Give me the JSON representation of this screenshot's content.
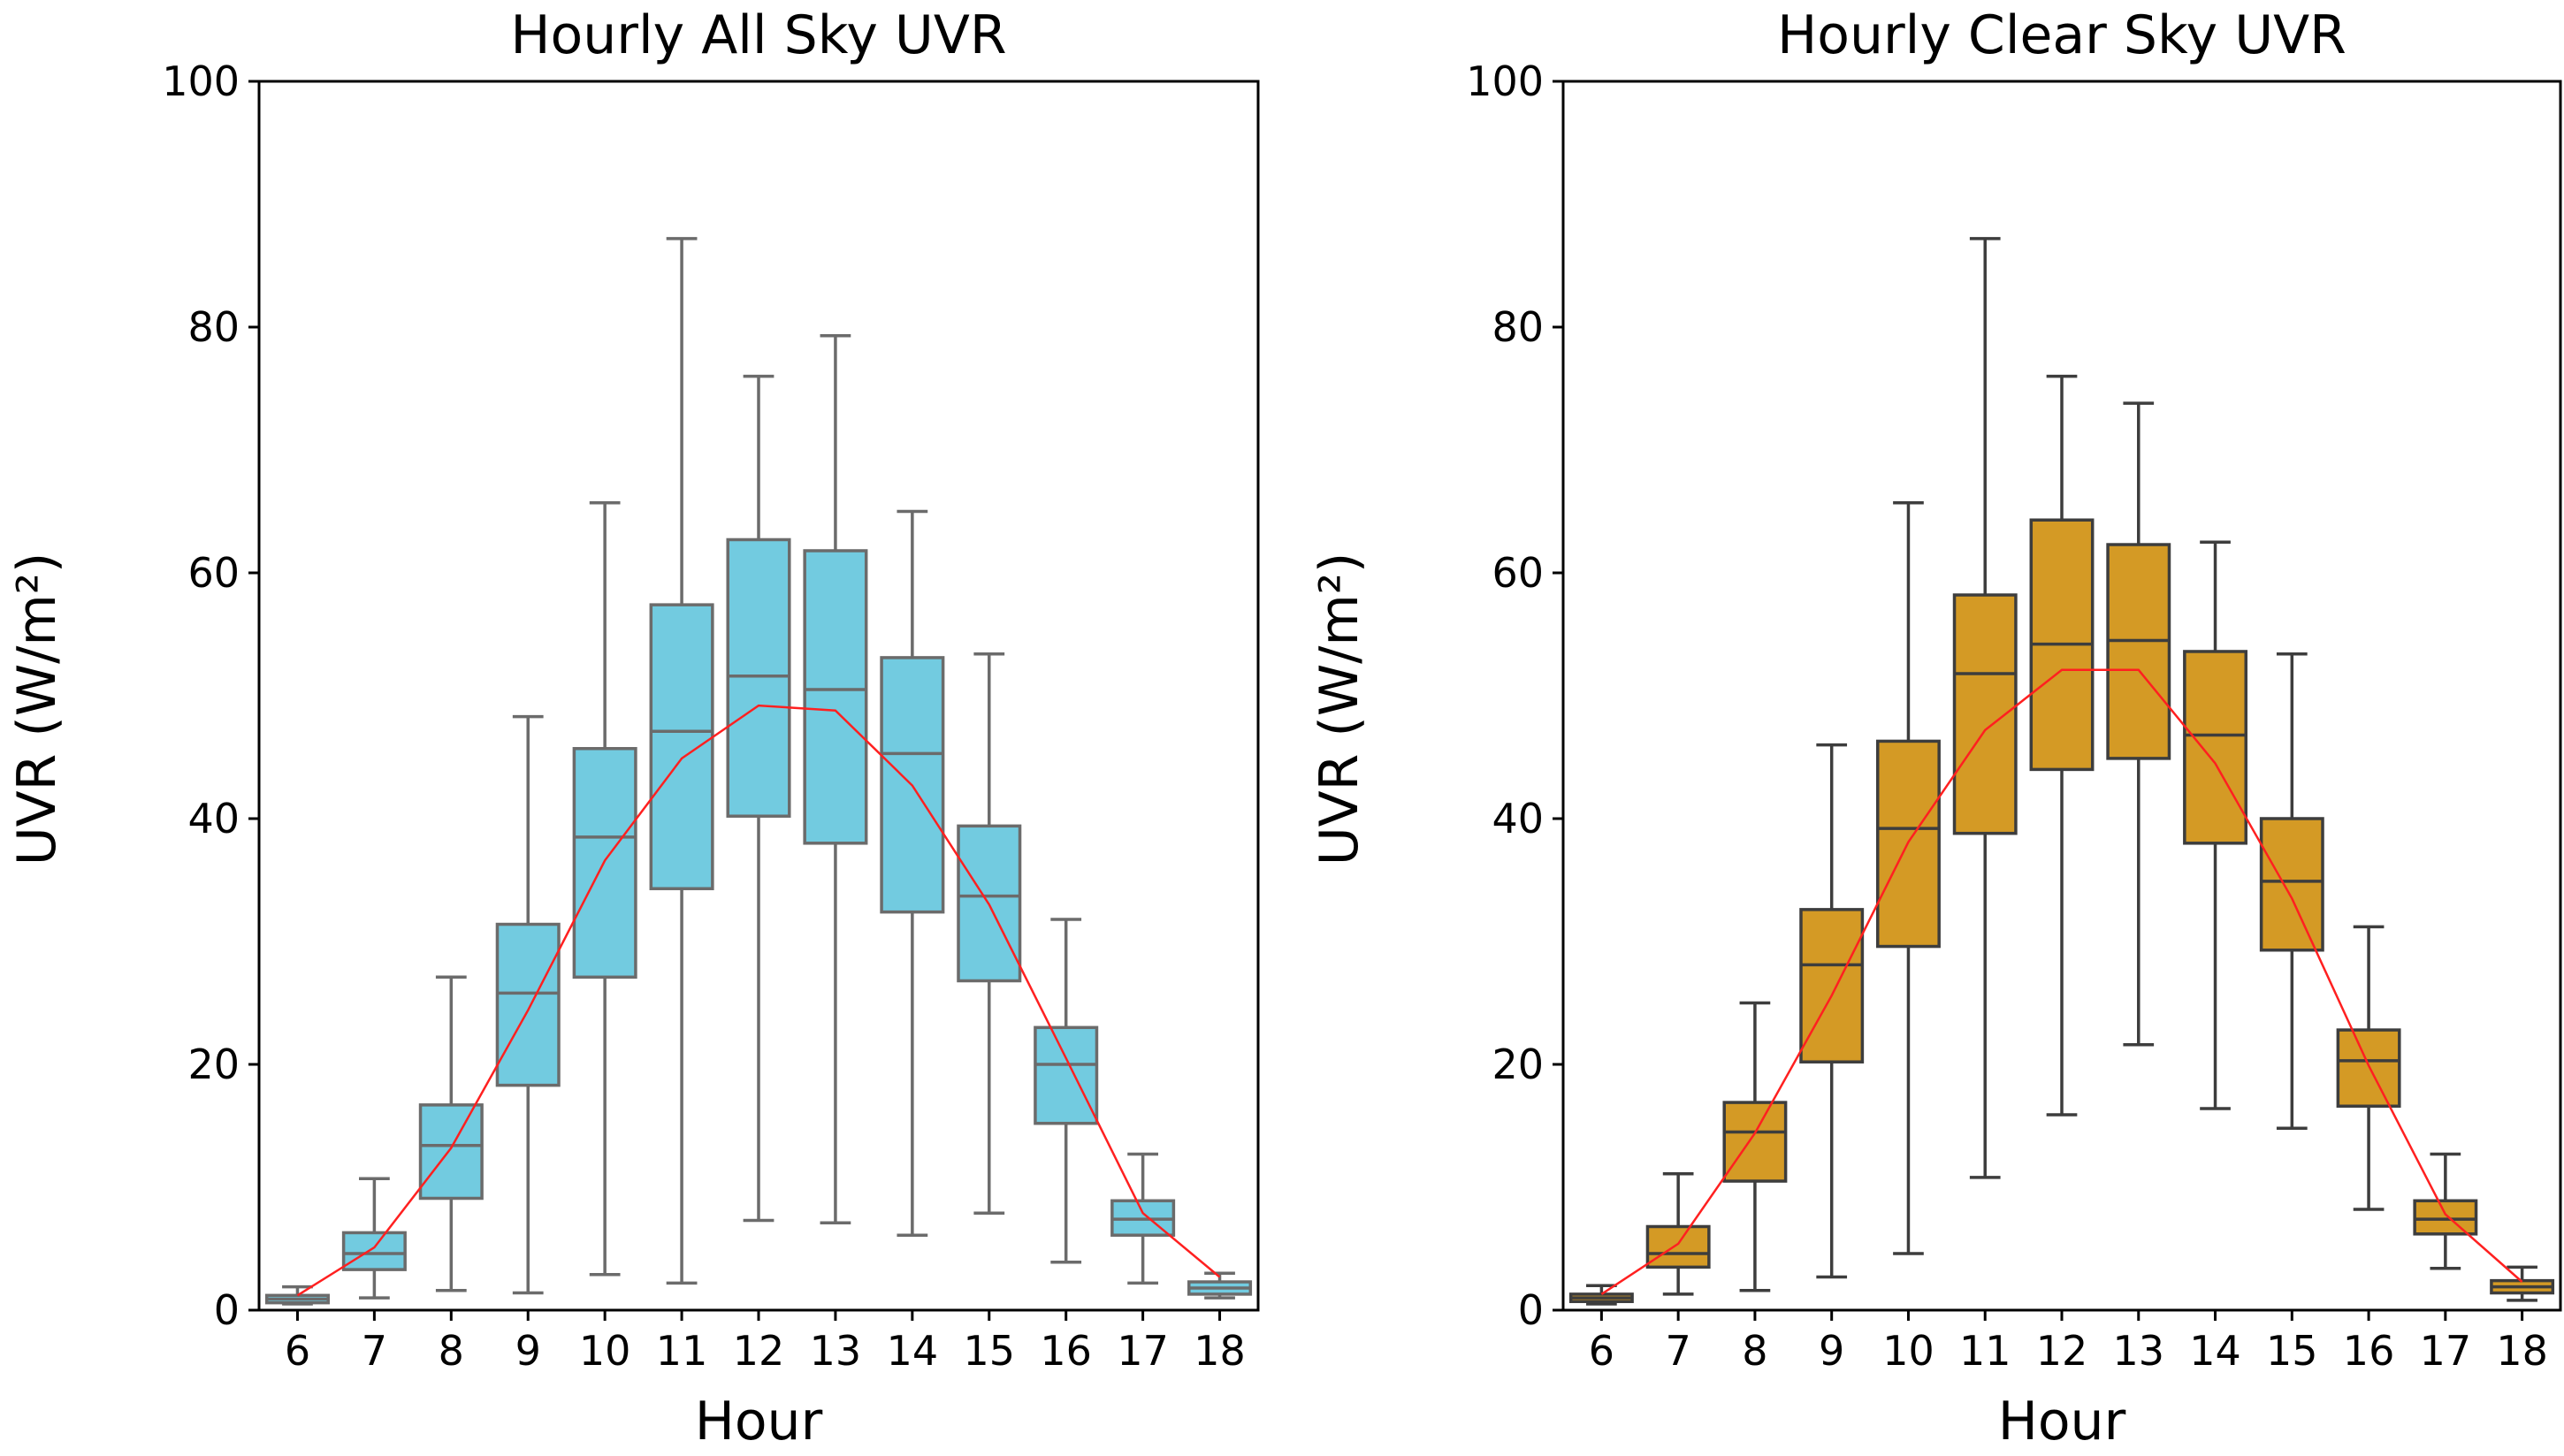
{
  "chart_data": [
    {
      "type": "box",
      "title": "Hourly All Sky UVR",
      "xlabel": "Hour",
      "ylabel": "UVR (W/m²)",
      "ylim": [
        0,
        100
      ],
      "yticks": [
        "0",
        "20",
        "40",
        "60",
        "80",
        "100"
      ],
      "categories": [
        "6",
        "7",
        "8",
        "9",
        "10",
        "11",
        "12",
        "13",
        "14",
        "15",
        "16",
        "17",
        "18"
      ],
      "box_color": "#72cbe0",
      "box_edge_color": "#6b6b6b",
      "mean_line_color": "#ff2020",
      "boxes": [
        {
          "hour": "6",
          "whislo": 0.5,
          "q1": 0.6,
          "med": 0.9,
          "q3": 1.2,
          "whishi": 1.9
        },
        {
          "hour": "7",
          "whislo": 1.0,
          "q1": 3.3,
          "med": 4.6,
          "q3": 6.3,
          "whishi": 10.7
        },
        {
          "hour": "8",
          "whislo": 1.6,
          "q1": 9.1,
          "med": 13.4,
          "q3": 16.7,
          "whishi": 27.1
        },
        {
          "hour": "9",
          "whislo": 1.4,
          "q1": 18.3,
          "med": 25.8,
          "q3": 31.4,
          "whishi": 48.3
        },
        {
          "hour": "10",
          "whislo": 2.9,
          "q1": 27.1,
          "med": 38.5,
          "q3": 45.7,
          "whishi": 65.7
        },
        {
          "hour": "11",
          "whislo": 2.2,
          "q1": 34.3,
          "med": 47.1,
          "q3": 57.4,
          "whishi": 87.2
        },
        {
          "hour": "12",
          "whislo": 7.3,
          "q1": 40.2,
          "med": 51.6,
          "q3": 62.7,
          "whishi": 76.0
        },
        {
          "hour": "13",
          "whislo": 7.1,
          "q1": 38.0,
          "med": 50.5,
          "q3": 61.8,
          "whishi": 79.3
        },
        {
          "hour": "14",
          "whislo": 6.1,
          "q1": 32.4,
          "med": 45.3,
          "q3": 53.1,
          "whishi": 65.0
        },
        {
          "hour": "15",
          "whislo": 7.9,
          "q1": 26.8,
          "med": 33.7,
          "q3": 39.4,
          "whishi": 53.4
        },
        {
          "hour": "16",
          "whislo": 3.9,
          "q1": 15.2,
          "med": 20.0,
          "q3": 23.0,
          "whishi": 31.8
        },
        {
          "hour": "17",
          "whislo": 2.2,
          "q1": 6.1,
          "med": 7.4,
          "q3": 8.9,
          "whishi": 12.7
        },
        {
          "hour": "18",
          "whislo": 1.0,
          "q1": 1.3,
          "med": 1.8,
          "q3": 2.3,
          "whishi": 3.0
        }
      ],
      "mean_line": [
        1.2,
        5.1,
        13.2,
        24.4,
        36.6,
        44.9,
        49.2,
        48.8,
        42.7,
        33.0,
        20.5,
        7.9,
        2.7
      ]
    },
    {
      "type": "box",
      "title": "Hourly Clear Sky UVR",
      "xlabel": "Hour",
      "ylabel": "UVR (W/m²)",
      "ylim": [
        0,
        100
      ],
      "yticks": [
        "0",
        "20",
        "40",
        "60",
        "80",
        "100"
      ],
      "categories": [
        "6",
        "7",
        "8",
        "9",
        "10",
        "11",
        "12",
        "13",
        "14",
        "15",
        "16",
        "17",
        "18"
      ],
      "box_color": "#d49a25",
      "box_edge_color": "#3d3d3d",
      "mean_line_color": "#ff2020",
      "boxes": [
        {
          "hour": "6",
          "whislo": 0.5,
          "q1": 0.7,
          "med": 1.0,
          "q3": 1.3,
          "whishi": 2.0
        },
        {
          "hour": "7",
          "whislo": 1.3,
          "q1": 3.5,
          "med": 4.6,
          "q3": 6.8,
          "whishi": 11.1
        },
        {
          "hour": "8",
          "whislo": 1.6,
          "q1": 10.5,
          "med": 14.5,
          "q3": 16.9,
          "whishi": 25.0
        },
        {
          "hour": "9",
          "whislo": 2.7,
          "q1": 20.2,
          "med": 28.1,
          "q3": 32.6,
          "whishi": 46.0
        },
        {
          "hour": "10",
          "whislo": 4.6,
          "q1": 29.6,
          "med": 39.2,
          "q3": 46.3,
          "whishi": 65.7
        },
        {
          "hour": "11",
          "whislo": 10.8,
          "q1": 38.8,
          "med": 51.8,
          "q3": 58.2,
          "whishi": 87.2
        },
        {
          "hour": "12",
          "whislo": 15.9,
          "q1": 44.0,
          "med": 54.2,
          "q3": 64.3,
          "whishi": 76.0
        },
        {
          "hour": "13",
          "whislo": 21.6,
          "q1": 44.9,
          "med": 54.5,
          "q3": 62.3,
          "whishi": 73.8
        },
        {
          "hour": "14",
          "whislo": 16.4,
          "q1": 38.0,
          "med": 46.8,
          "q3": 53.6,
          "whishi": 62.5
        },
        {
          "hour": "15",
          "whislo": 14.8,
          "q1": 29.3,
          "med": 34.9,
          "q3": 40.0,
          "whishi": 53.4
        },
        {
          "hour": "16",
          "whislo": 8.2,
          "q1": 16.6,
          "med": 20.3,
          "q3": 22.8,
          "whishi": 31.2
        },
        {
          "hour": "17",
          "whislo": 3.4,
          "q1": 6.2,
          "med": 7.4,
          "q3": 8.9,
          "whishi": 12.7
        },
        {
          "hour": "18",
          "whislo": 0.8,
          "q1": 1.4,
          "med": 1.9,
          "q3": 2.4,
          "whishi": 3.5
        }
      ],
      "mean_line": [
        1.3,
        5.4,
        14.4,
        25.6,
        38.1,
        47.2,
        52.1,
        52.1,
        44.5,
        33.5,
        19.9,
        7.8,
        2.3
      ]
    }
  ]
}
